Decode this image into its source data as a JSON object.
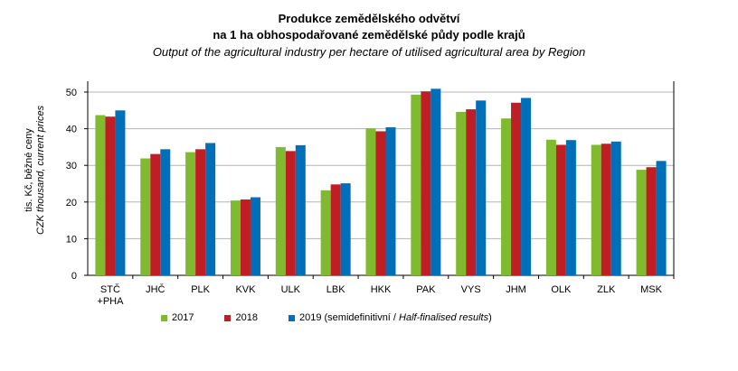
{
  "chart_data": {
    "type": "bar",
    "title": "Produkce zemědělského odvětví",
    "title_line2": "na 1 ha obhospodařované zemědělské půdy podle krajů",
    "subtitle": "Output of the agricultural industry per hectare of utilised agricultural area by Region",
    "ylabel_cz": "tis. Kč, běžné ceny",
    "ylabel_en": "CZK thousand, current prices",
    "xlabel": "",
    "ylim": [
      0,
      50
    ],
    "yticks": [
      "0",
      "10",
      "20",
      "30",
      "40",
      "50"
    ],
    "grid": true,
    "legend_position": "bottom",
    "categories": [
      "STČ\n+PHA",
      "JHČ",
      "PLK",
      "KVK",
      "ULK",
      "LBK",
      "HKK",
      "PAK",
      "VYS",
      "JHM",
      "OLK",
      "ZLK",
      "MSK"
    ],
    "series": [
      {
        "name": "2017",
        "color": "#7fba2f",
        "values": [
          43.7,
          31.9,
          33.6,
          20.4,
          35.0,
          23.2,
          40.1,
          49.3,
          44.6,
          42.8,
          37.0,
          35.6,
          28.8
        ]
      },
      {
        "name": "2018",
        "color": "#be1e24",
        "values": [
          43.3,
          33.1,
          34.4,
          20.7,
          33.9,
          24.8,
          39.3,
          50.2,
          45.3,
          47.1,
          35.6,
          35.9,
          29.5
        ]
      },
      {
        "name": "2019",
        "name_suffix": " (semidefinitivní / ",
        "name_suffix_it": "Half-finalised results",
        "name_end": ")",
        "color": "#006fba",
        "values": [
          45.0,
          34.4,
          36.1,
          21.3,
          35.5,
          25.1,
          40.4,
          50.9,
          47.7,
          48.4,
          36.9,
          36.5,
          31.2
        ]
      }
    ]
  }
}
